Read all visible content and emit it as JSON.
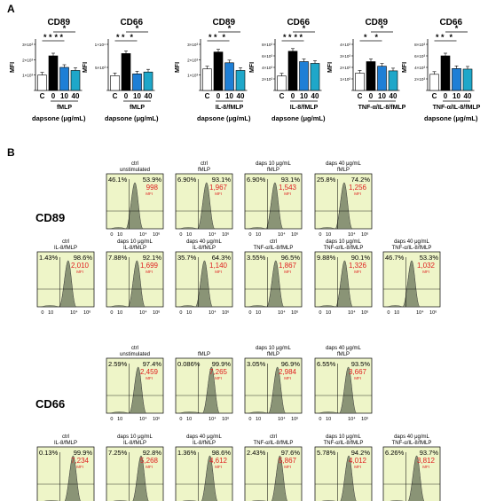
{
  "panel_a_label": "A",
  "panel_b_label": "B",
  "chart_data": [
    {
      "type": "bar",
      "panel": "A",
      "charts": [
        {
          "title": "CD89",
          "ylabel": "MFI",
          "xgroup": "fMLP",
          "xlabel": "dapsone (μg/mL)",
          "categories": [
            "C",
            "0",
            "10",
            "40"
          ],
          "values": [
            1000,
            2250,
            1500,
            1300
          ],
          "ylim": [
            0,
            3000
          ],
          "yticks": [
            "",
            "1×10³",
            "2×10³",
            "3×10³"
          ],
          "sig_row1": [
            "* *",
            "* *"
          ],
          "sig_row2": [
            "*"
          ]
        },
        {
          "title": "CD66",
          "ylabel": "MFI",
          "xgroup": "fMLP",
          "xlabel": "dapsone (μg/mL)",
          "categories": [
            "C",
            "0",
            "10",
            "40"
          ],
          "values": [
            3200,
            8000,
            3600,
            4000
          ],
          "ylim": [
            0,
            10000
          ],
          "yticks": [
            "",
            "5×10³",
            "1×10⁴"
          ],
          "sig_row1": [
            "* *",
            "*"
          ],
          "sig_row2": [
            "*"
          ]
        },
        {
          "title": "CD89",
          "ylabel": "MFI",
          "xgroup": "IL-8/fMLP",
          "xlabel": "dapsone (μg/mL)",
          "categories": [
            "C",
            "0",
            "10",
            "40"
          ],
          "values": [
            1400,
            2500,
            1800,
            1300
          ],
          "ylim": [
            0,
            3000
          ],
          "yticks": [
            "",
            "1×10³",
            "2×10³",
            "3×10³"
          ],
          "sig_row1": [
            "* *",
            "*"
          ],
          "sig_row2": [
            "*"
          ]
        },
        {
          "title": "CD66",
          "ylabel": "MFI",
          "xgroup": "IL-8/fMLP",
          "xlabel": "dapsone (μg/mL)",
          "categories": [
            "C",
            "0",
            "10",
            "40"
          ],
          "values": [
            2500,
            6800,
            5000,
            4700
          ],
          "ylim": [
            0,
            8000
          ],
          "yticks": [
            "",
            "2×10³",
            "4×10³",
            "6×10³",
            "8×10³"
          ],
          "sig_row1": [
            "* *",
            "* *"
          ],
          "sig_row2": [
            "*"
          ]
        },
        {
          "title": "CD89",
          "ylabel": "MFI",
          "xgroup": "TNF-α/IL-8/fMLP",
          "xlabel": "",
          "categories": [
            "C",
            "0",
            "10",
            "40"
          ],
          "values": [
            1500,
            2500,
            2100,
            1700
          ],
          "ylim": [
            0,
            4000
          ],
          "yticks": [
            "",
            "1×10³",
            "2×10³",
            "3×10³",
            "4×10³"
          ],
          "sig_row1": [
            "*",
            "*"
          ],
          "sig_row2": [
            "*"
          ]
        },
        {
          "title": "CD66",
          "ylabel": "MFI",
          "xgroup": "TNF-α/IL-8/fMLP",
          "xlabel": "dapsone (μg/mL)",
          "categories": [
            "C",
            "0",
            "10",
            "40"
          ],
          "values": [
            2800,
            6000,
            3800,
            3700
          ],
          "ylim": [
            0,
            8000
          ],
          "yticks": [
            "",
            "2×10³",
            "4×10³",
            "6×10³",
            "8×10³"
          ],
          "sig_row1": [
            "* *",
            "*"
          ],
          "sig_row2": [
            "*"
          ]
        }
      ]
    },
    {
      "type": "histogram",
      "panel": "B",
      "mfi_label": "MFI",
      "x_tick_labels": [
        "0",
        "10",
        "10⁴",
        "10⁶"
      ],
      "groups": [
        {
          "marker": "CD89",
          "panels": [
            {
              "title": [
                "ctrl",
                "unstimulated"
              ],
              "left": "46.1%",
              "right": "53.9%",
              "mfi": "998",
              "peak_log": 3.0
            },
            {
              "title": [
                "ctrl",
                "fMLP"
              ],
              "left": "6.90%",
              "right": "93.1%",
              "mfi": "1,967",
              "peak_log": 3.3
            },
            {
              "title": [
                "daps 10 μg/mL",
                "fMLP"
              ],
              "left": "6.90%",
              "right": "93.1%",
              "mfi": "1,543",
              "peak_log": 3.2
            },
            {
              "title": [
                "daps 40 μg/mL",
                "fMLP"
              ],
              "left": "25.8%",
              "right": "74.2%",
              "mfi": "1,256",
              "peak_log": 3.1
            }
          ]
        },
        {
          "marker": "",
          "panels": [
            {
              "title": [
                "ctrl",
                "IL-8/fMLP"
              ],
              "left": "1.43%",
              "right": "98.6%",
              "mfi": "2,010",
              "peak_log": 3.3
            },
            {
              "title": [
                "daps 10 μg/mL",
                "IL-8/fMLP"
              ],
              "left": "7.88%",
              "right": "92.1%",
              "mfi": "1,699",
              "peak_log": 3.25
            },
            {
              "title": [
                "daps 40 μg/mL",
                "IL-8/fMLP"
              ],
              "left": "35.7%",
              "right": "64.3%",
              "mfi": "1,140",
              "peak_log": 3.05
            },
            {
              "title": [
                "ctrl",
                "TNF-α/IL-8/fMLP"
              ],
              "left": "3.55%",
              "right": "96.5%",
              "mfi": "1,867",
              "peak_log": 3.3
            },
            {
              "title": [
                "daps 10 μg/mL",
                "TNF-α/IL-8/fMLP"
              ],
              "left": "9.88%",
              "right": "90.1%",
              "mfi": "1,326",
              "peak_log": 3.15
            },
            {
              "title": [
                "daps 40 μg/mL",
                "TNF-α/IL-8/fMLP"
              ],
              "left": "46.7%",
              "right": "53.3%",
              "mfi": "1,032",
              "peak_log": 3.0
            }
          ]
        },
        {
          "marker": "CD66",
          "panels": [
            {
              "title": [
                "ctrl",
                "unstimulated"
              ],
              "left": "2.59%",
              "right": "97.4%",
              "mfi": "2,459",
              "peak_log": 3.4
            },
            {
              "title": [
                "",
                "fMLP"
              ],
              "left": "0.086%",
              "right": "99.9%",
              "mfi": "7,265",
              "peak_log": 3.9
            },
            {
              "title": [
                "daps 10 μg/mL",
                "fMLP"
              ],
              "left": "3.05%",
              "right": "96.9%",
              "mfi": "2,984",
              "peak_log": 3.5
            },
            {
              "title": [
                "daps 40 μg/mL",
                "fMLP"
              ],
              "left": "6.55%",
              "right": "93.5%",
              "mfi": "3,667",
              "peak_log": 3.6
            }
          ]
        },
        {
          "marker": "",
          "panels": [
            {
              "title": [
                "ctrl",
                "IL-8/fMLP"
              ],
              "left": "0.13%",
              "right": "99.9%",
              "mfi": "7,234",
              "peak_log": 3.9
            },
            {
              "title": [
                "daps 10 μg/mL",
                "IL-8/fMLP"
              ],
              "left": "7.25%",
              "right": "92.8%",
              "mfi": "5,268",
              "peak_log": 3.75
            },
            {
              "title": [
                "daps 40 μg/mL",
                "IL-8/fMLP"
              ],
              "left": "1.36%",
              "right": "98.6%",
              "mfi": "4,612",
              "peak_log": 3.7
            },
            {
              "title": [
                "ctrl",
                "TNF-α/IL-8/fMLP"
              ],
              "left": "2.43%",
              "right": "97.6%",
              "mfi": "5,867",
              "peak_log": 3.8
            },
            {
              "title": [
                "daps 10 μg/mL",
                "TNF-α/IL-8/fMLP"
              ],
              "left": "5.78%",
              "right": "94.2%",
              "mfi": "4,012",
              "peak_log": 3.65
            },
            {
              "title": [
                "daps 40 μg/mL",
                "TNF-α/IL-8/fMLP"
              ],
              "left": "6.26%",
              "right": "93.7%",
              "mfi": "3,812",
              "peak_log": 3.6
            }
          ]
        }
      ]
    }
  ],
  "colors": {
    "control_bar": "#ffffff",
    "zero_bar": "#000000",
    "ten_bar": "#1e7fd6",
    "forty_bar": "#1fa7c9",
    "plot_bg": "#eef5c8",
    "hist_fill": "#8a9476",
    "mfi_red": "#e02020"
  }
}
